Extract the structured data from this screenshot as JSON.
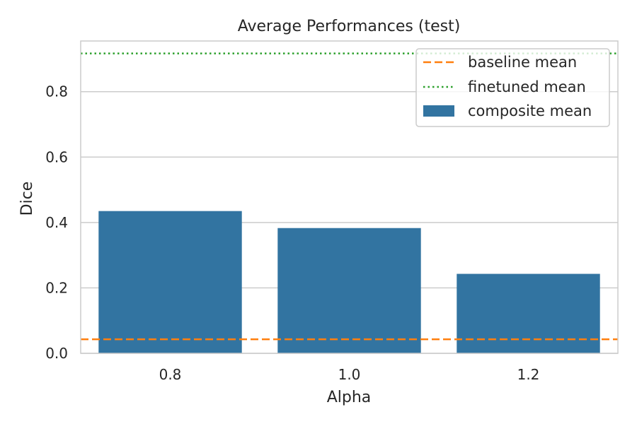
{
  "chart_data": {
    "type": "bar",
    "title": "Average Performances (test)",
    "xlabel": "Alpha",
    "ylabel": "Dice",
    "categories": [
      "0.8",
      "1.0",
      "1.2"
    ],
    "values": [
      0.435,
      0.383,
      0.243
    ],
    "ylim": [
      0,
      0.955
    ],
    "yticks": [
      0.0,
      0.2,
      0.4,
      0.6,
      0.8
    ],
    "ytick_labels": [
      "0.0",
      "0.2",
      "0.4",
      "0.6",
      "0.8"
    ],
    "grid": true,
    "reference_lines": [
      {
        "name": "baseline mean",
        "value": 0.043,
        "style": "dashed",
        "color": "#ff7f0e"
      },
      {
        "name": "finetuned mean",
        "value": 0.917,
        "style": "dotted",
        "color": "#2ca02c"
      }
    ],
    "bar_series_name": "composite mean",
    "bar_color": "#3274a1",
    "legend": {
      "position": "top-right",
      "entries": [
        "baseline mean",
        "finetuned mean",
        "composite mean"
      ]
    }
  }
}
